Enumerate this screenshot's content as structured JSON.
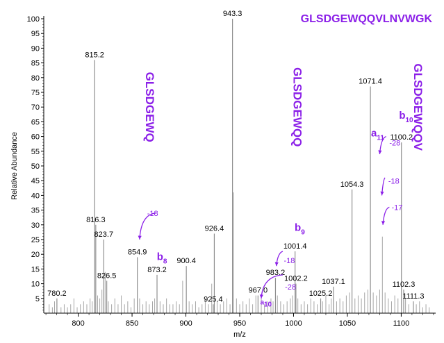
{
  "chart_data": {
    "type": "bar",
    "title": "GLSDGEWQQVLNVWGK",
    "xlabel": "m/z",
    "ylabel": "Relative Abundance",
    "xlim": [
      768,
      1132
    ],
    "ylim": [
      0,
      100
    ],
    "x_ticks": [
      800,
      850,
      900,
      950,
      1000,
      1050,
      1100
    ],
    "y_ticks": [
      5,
      10,
      15,
      20,
      25,
      30,
      35,
      40,
      45,
      50,
      55,
      60,
      65,
      70,
      75,
      80,
      85,
      90,
      95,
      100
    ],
    "labeled_peaks": [
      {
        "mz": 780.2,
        "intensity": 5,
        "label": "780.2"
      },
      {
        "mz": 815.2,
        "intensity": 86,
        "label": "815.2"
      },
      {
        "mz": 816.3,
        "intensity": 30,
        "label": "816.3"
      },
      {
        "mz": 823.7,
        "intensity": 25,
        "label": "823.7"
      },
      {
        "mz": 826.5,
        "intensity": 11,
        "label": "826.5"
      },
      {
        "mz": 854.9,
        "intensity": 19,
        "label": "854.9"
      },
      {
        "mz": 873.2,
        "intensity": 13,
        "label": "873.2"
      },
      {
        "mz": 900.4,
        "intensity": 16,
        "label": "900.4"
      },
      {
        "mz": 925.4,
        "intensity": 3,
        "label": "925.4"
      },
      {
        "mz": 926.4,
        "intensity": 27,
        "label": "926.4"
      },
      {
        "mz": 943.3,
        "intensity": 100,
        "label": "943.3"
      },
      {
        "mz": 967.0,
        "intensity": 6,
        "label": "967.0"
      },
      {
        "mz": 983.2,
        "intensity": 12,
        "label": "983.2"
      },
      {
        "mz": 1001.4,
        "intensity": 21,
        "label": "1001.4"
      },
      {
        "mz": 1002.2,
        "intensity": 10,
        "label": "1002.2"
      },
      {
        "mz": 1025.2,
        "intensity": 5,
        "label": "1025.2"
      },
      {
        "mz": 1037.1,
        "intensity": 9,
        "label": "1037.1"
      },
      {
        "mz": 1054.3,
        "intensity": 42,
        "label": "1054.3"
      },
      {
        "mz": 1071.4,
        "intensity": 77,
        "label": "1071.4"
      },
      {
        "mz": 1100.2,
        "intensity": 58,
        "label": "1100.2"
      },
      {
        "mz": 1102.3,
        "intensity": 8,
        "label": "1102.3"
      },
      {
        "mz": 1111.3,
        "intensity": 4,
        "label": "1111.3"
      }
    ],
    "unlabeled_peaks": [
      {
        "mz": 773,
        "intensity": 3
      },
      {
        "mz": 776,
        "intensity": 2
      },
      {
        "mz": 778,
        "intensity": 4
      },
      {
        "mz": 784,
        "intensity": 2
      },
      {
        "mz": 787,
        "intensity": 3
      },
      {
        "mz": 790,
        "intensity": 2
      },
      {
        "mz": 793,
        "intensity": 3
      },
      {
        "mz": 796,
        "intensity": 5
      },
      {
        "mz": 799,
        "intensity": 2
      },
      {
        "mz": 802,
        "intensity": 3
      },
      {
        "mz": 805,
        "intensity": 4
      },
      {
        "mz": 808,
        "intensity": 3
      },
      {
        "mz": 811,
        "intensity": 5
      },
      {
        "mz": 813,
        "intensity": 4
      },
      {
        "mz": 818,
        "intensity": 6
      },
      {
        "mz": 820,
        "intensity": 5
      },
      {
        "mz": 822,
        "intensity": 8
      },
      {
        "mz": 825,
        "intensity": 14
      },
      {
        "mz": 828,
        "intensity": 4
      },
      {
        "mz": 831,
        "intensity": 3
      },
      {
        "mz": 834,
        "intensity": 5
      },
      {
        "mz": 837,
        "intensity": 3
      },
      {
        "mz": 840,
        "intensity": 6
      },
      {
        "mz": 843,
        "intensity": 3
      },
      {
        "mz": 846,
        "intensity": 4
      },
      {
        "mz": 849,
        "intensity": 2
      },
      {
        "mz": 852,
        "intensity": 5
      },
      {
        "mz": 857,
        "intensity": 5
      },
      {
        "mz": 860,
        "intensity": 3
      },
      {
        "mz": 863,
        "intensity": 4
      },
      {
        "mz": 866,
        "intensity": 3
      },
      {
        "mz": 869,
        "intensity": 4
      },
      {
        "mz": 871,
        "intensity": 5
      },
      {
        "mz": 876,
        "intensity": 4
      },
      {
        "mz": 879,
        "intensity": 3
      },
      {
        "mz": 882,
        "intensity": 5
      },
      {
        "mz": 885,
        "intensity": 3
      },
      {
        "mz": 888,
        "intensity": 3
      },
      {
        "mz": 891,
        "intensity": 4
      },
      {
        "mz": 894,
        "intensity": 3
      },
      {
        "mz": 897,
        "intensity": 11
      },
      {
        "mz": 903,
        "intensity": 4
      },
      {
        "mz": 906,
        "intensity": 3
      },
      {
        "mz": 909,
        "intensity": 4
      },
      {
        "mz": 912,
        "intensity": 2
      },
      {
        "mz": 915,
        "intensity": 3
      },
      {
        "mz": 918,
        "intensity": 5
      },
      {
        "mz": 921,
        "intensity": 3
      },
      {
        "mz": 924,
        "intensity": 10
      },
      {
        "mz": 929,
        "intensity": 4
      },
      {
        "mz": 932,
        "intensity": 3
      },
      {
        "mz": 935,
        "intensity": 4
      },
      {
        "mz": 938,
        "intensity": 5
      },
      {
        "mz": 941,
        "intensity": 3
      },
      {
        "mz": 944.2,
        "intensity": 41
      },
      {
        "mz": 947,
        "intensity": 5
      },
      {
        "mz": 950,
        "intensity": 3
      },
      {
        "mz": 953,
        "intensity": 4
      },
      {
        "mz": 956,
        "intensity": 3
      },
      {
        "mz": 959,
        "intensity": 5
      },
      {
        "mz": 962,
        "intensity": 3
      },
      {
        "mz": 965,
        "intensity": 6
      },
      {
        "mz": 970,
        "intensity": 5
      },
      {
        "mz": 973,
        "intensity": 3
      },
      {
        "mz": 976,
        "intensity": 4
      },
      {
        "mz": 979,
        "intensity": 5
      },
      {
        "mz": 981,
        "intensity": 4
      },
      {
        "mz": 985,
        "intensity": 6
      },
      {
        "mz": 988,
        "intensity": 4
      },
      {
        "mz": 991,
        "intensity": 3
      },
      {
        "mz": 994,
        "intensity": 4
      },
      {
        "mz": 997,
        "intensity": 5
      },
      {
        "mz": 999,
        "intensity": 6
      },
      {
        "mz": 1004,
        "intensity": 5
      },
      {
        "mz": 1007,
        "intensity": 3
      },
      {
        "mz": 1010,
        "intensity": 4
      },
      {
        "mz": 1013,
        "intensity": 3
      },
      {
        "mz": 1016,
        "intensity": 5
      },
      {
        "mz": 1019,
        "intensity": 4
      },
      {
        "mz": 1022,
        "intensity": 3
      },
      {
        "mz": 1027,
        "intensity": 4
      },
      {
        "mz": 1030,
        "intensity": 6
      },
      {
        "mz": 1033,
        "intensity": 3
      },
      {
        "mz": 1035,
        "intensity": 5
      },
      {
        "mz": 1040,
        "intensity": 4
      },
      {
        "mz": 1043,
        "intensity": 5
      },
      {
        "mz": 1046,
        "intensity": 4
      },
      {
        "mz": 1049,
        "intensity": 6
      },
      {
        "mz": 1052,
        "intensity": 7
      },
      {
        "mz": 1057,
        "intensity": 5
      },
      {
        "mz": 1060,
        "intensity": 6
      },
      {
        "mz": 1063,
        "intensity": 5
      },
      {
        "mz": 1066,
        "intensity": 7
      },
      {
        "mz": 1069,
        "intensity": 8
      },
      {
        "mz": 1074,
        "intensity": 7
      },
      {
        "mz": 1077,
        "intensity": 6
      },
      {
        "mz": 1080,
        "intensity": 8
      },
      {
        "mz": 1082.5,
        "intensity": 26
      },
      {
        "mz": 1085,
        "intensity": 7
      },
      {
        "mz": 1088,
        "intensity": 5
      },
      {
        "mz": 1091,
        "intensity": 4
      },
      {
        "mz": 1094,
        "intensity": 6
      },
      {
        "mz": 1097,
        "intensity": 5
      },
      {
        "mz": 1104,
        "intensity": 5
      },
      {
        "mz": 1107,
        "intensity": 3
      },
      {
        "mz": 1114,
        "intensity": 3
      },
      {
        "mz": 1117,
        "intensity": 4
      },
      {
        "mz": 1120,
        "intensity": 2
      },
      {
        "mz": 1123,
        "intensity": 3
      },
      {
        "mz": 1126,
        "intensity": 2
      }
    ],
    "annotations": {
      "sequences": [
        {
          "text": "GLSDGEWQ",
          "mz": 863,
          "intensity": 70
        },
        {
          "text": "GLSDGEWQQ",
          "mz": 1000,
          "intensity": 70
        },
        {
          "text": "GLSDGEWQQV",
          "mz": 1112,
          "intensity": 70
        }
      ],
      "ions": [
        {
          "ion": "b",
          "subscript": "8",
          "mz": 873,
          "intensity": 18
        },
        {
          "ion": "b",
          "subscript": "9",
          "mz": 1001,
          "intensity": 28
        },
        {
          "ion": "a",
          "subscript": "11",
          "mz": 1072,
          "intensity": 60
        },
        {
          "ion": "b",
          "subscript": "10",
          "mz": 1098,
          "intensity": 66
        },
        {
          "ion": "a",
          "subscript": "10",
          "mz": 969,
          "intensity": 3
        }
      ],
      "losses": [
        {
          "text": "-18",
          "mz": 864,
          "intensity": 33
        },
        {
          "text": "-18",
          "mz": 991,
          "intensity": 17
        },
        {
          "text": "-28",
          "mz": 992,
          "intensity": 8
        },
        {
          "text": "-28",
          "mz": 1089,
          "intensity": 57
        },
        {
          "text": "-18",
          "mz": 1088,
          "intensity": 44
        },
        {
          "text": "-17",
          "mz": 1091,
          "intensity": 35
        }
      ]
    },
    "colors": {
      "annotation": "#8B1FE8",
      "peaks": "#9a9a9a",
      "axis": "#000000"
    }
  }
}
